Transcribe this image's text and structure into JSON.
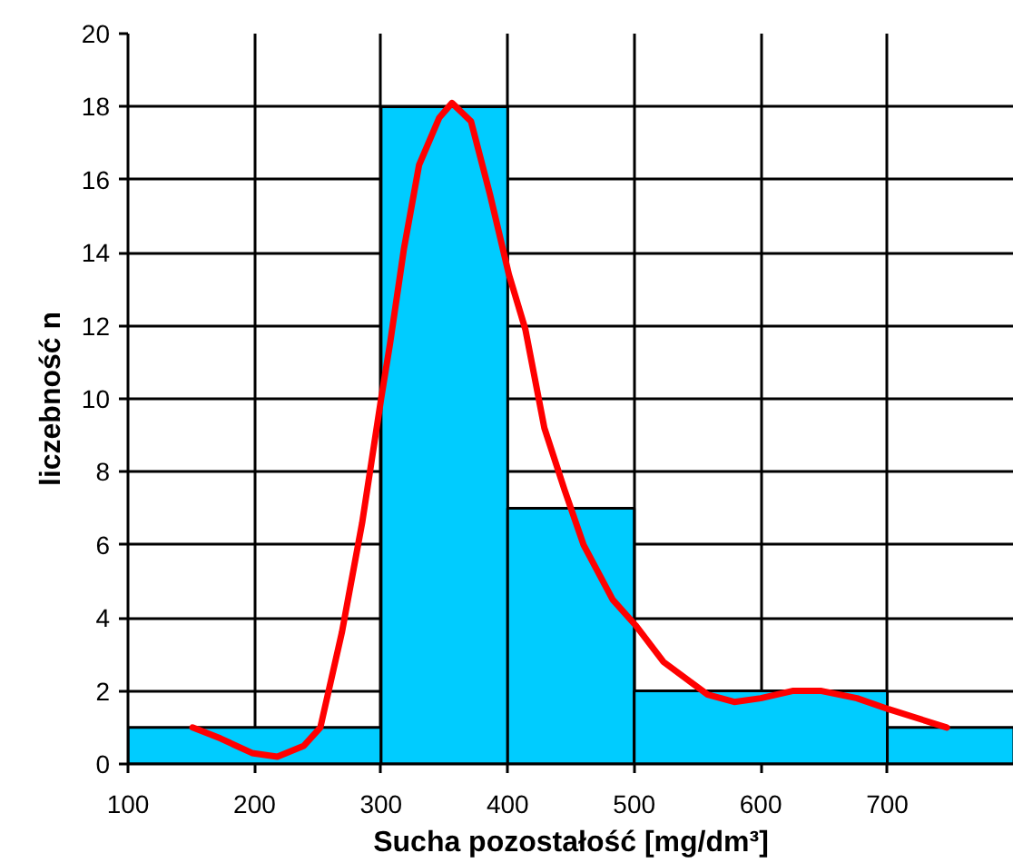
{
  "chart_data": {
    "type": "histogram",
    "xlabel": "Sucha pozostałość [mg/dm³]",
    "ylabel": "liczebność n",
    "bins": [
      100,
      300,
      400,
      500,
      700,
      800
    ],
    "values": [
      1,
      18,
      7,
      2,
      1
    ],
    "color": "#00ccff",
    "series": [
      {
        "type": "line",
        "color": "#ff0000",
        "x": [
          151,
          173,
          198,
          218,
          239,
          252,
          269,
          285,
          300,
          307,
          318,
          330,
          346,
          356,
          371,
          386,
          401,
          414,
          429,
          445,
          460,
          483,
          501,
          523,
          558,
          579,
          600,
          625,
          648,
          676,
          701,
          747
        ],
        "values": [
          1.0,
          0.7,
          0.3,
          0.2,
          0.5,
          1.0,
          3.6,
          6.6,
          10.0,
          11.5,
          14.1,
          16.4,
          17.7,
          18.1,
          17.6,
          15.6,
          13.4,
          11.9,
          9.2,
          7.5,
          6.0,
          4.5,
          3.8,
          2.8,
          1.9,
          1.7,
          1.8,
          2.0,
          2.0,
          1.8,
          1.5,
          1.0
        ]
      }
    ],
    "xlim": [
      100,
      800
    ],
    "ylim": [
      0,
      20
    ],
    "xticks": [
      100,
      200,
      300,
      400,
      500,
      600,
      700
    ],
    "yticks": [
      0,
      2,
      4,
      6,
      8,
      10,
      12,
      14,
      16,
      18,
      20
    ],
    "grid": true
  }
}
